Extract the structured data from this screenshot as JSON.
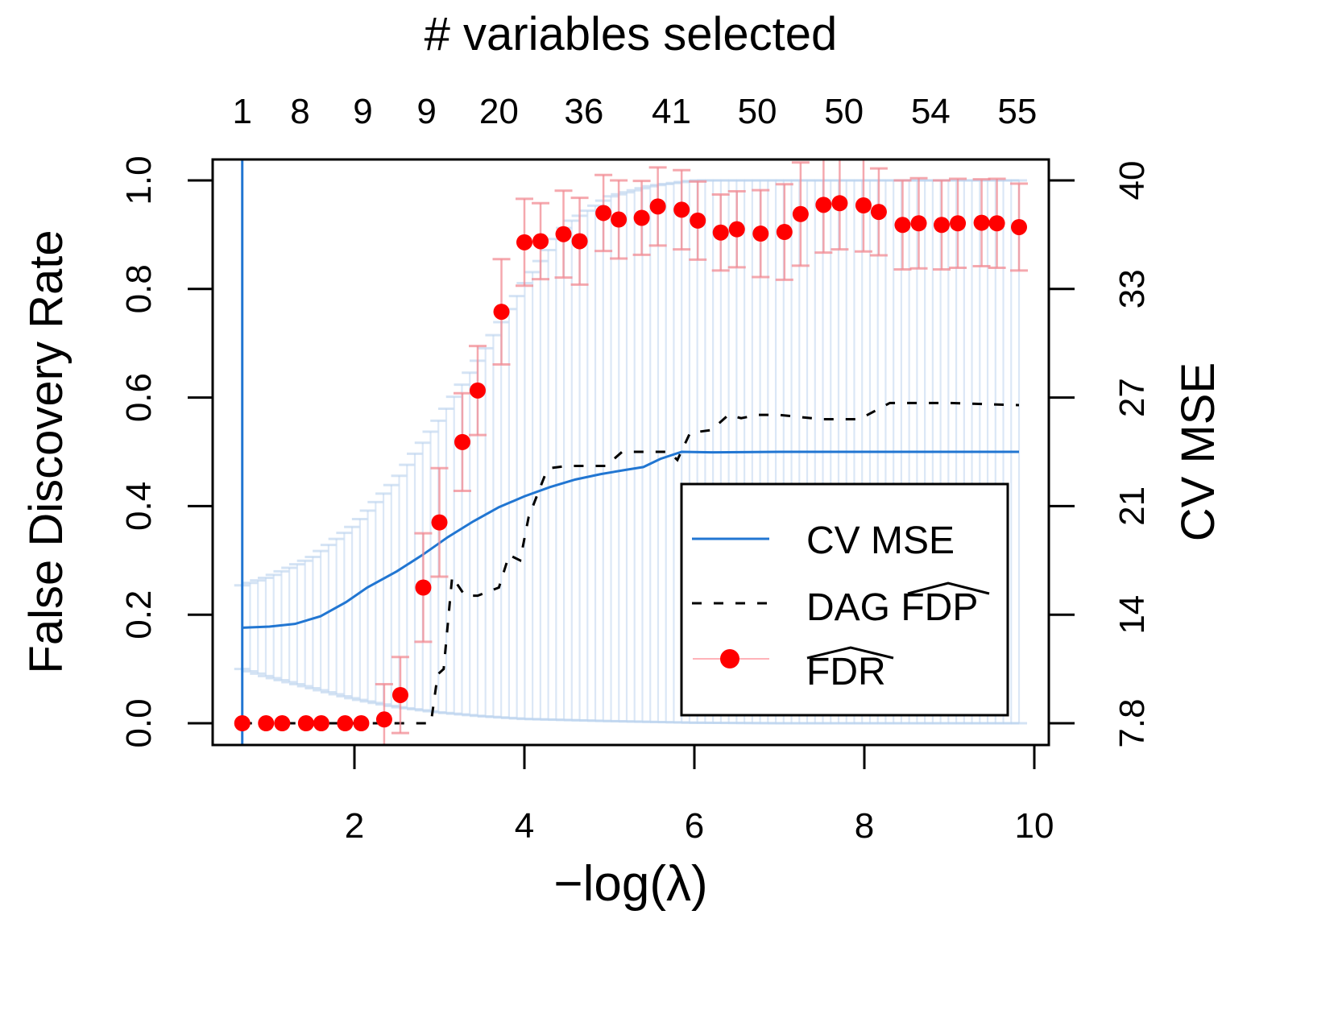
{
  "chart_data": {
    "type": "scatter",
    "title": "",
    "top_axis": {
      "label": "# variables selected",
      "tick_positions": [
        0.68,
        1.36,
        2.1,
        2.85,
        3.7,
        4.7,
        5.73,
        6.74,
        7.76,
        8.78,
        9.8
      ],
      "tick_labels": [
        "1",
        "8",
        "9",
        "9",
        "20",
        "36",
        "41",
        "50",
        "50",
        "54",
        "55"
      ]
    },
    "xlabel": "−log(λ)",
    "ylabel": "False Discovery Rate",
    "y2label": "CV MSE",
    "xlim": [
      0.5,
      10.2
    ],
    "ylim": [
      -0.04,
      1.04
    ],
    "x_ticks": [
      2,
      4,
      6,
      8,
      10
    ],
    "y_ticks": [
      0.0,
      0.2,
      0.4,
      0.6,
      0.8,
      1.0
    ],
    "y_tick_labels": [
      "0.0",
      "0.2",
      "0.4",
      "0.6",
      "0.8",
      "1.0"
    ],
    "y2_ticks": [
      0.0,
      0.2,
      0.4,
      0.6,
      0.8,
      1.0
    ],
    "y2_tick_labels": [
      "7.8",
      "14",
      "21",
      "27",
      "33",
      "40"
    ],
    "grid": false,
    "legend_position": "bottom-right",
    "legend": [
      {
        "label": "CV MSE",
        "style": "solid-line",
        "color": "#2176d2"
      },
      {
        "label": "DAG FDP",
        "hat": "FDP",
        "prefix": "DAG ",
        "style": "dashed-line",
        "color": "#000000"
      },
      {
        "label": "FDR",
        "hat": "FDR",
        "prefix": "",
        "style": "point-errorbar",
        "color": "#ff0000"
      }
    ],
    "vertical_line": {
      "x": 0.68,
      "color": "#2176d2"
    },
    "series": [
      {
        "name": "FDR (estimated)",
        "type": "scatter-errorbar",
        "color": "#ff0000",
        "x": [
          0.68,
          0.96,
          1.15,
          1.43,
          1.61,
          1.89,
          2.08,
          2.35,
          2.54,
          2.81,
          3.0,
          3.27,
          3.45,
          3.73,
          4.0,
          4.19,
          4.46,
          4.65,
          4.93,
          5.11,
          5.38,
          5.57,
          5.85,
          6.04,
          6.31,
          6.5,
          6.78,
          7.06,
          7.25,
          7.52,
          7.71,
          7.99,
          8.17,
          8.45,
          8.64,
          8.91,
          9.1,
          9.38,
          9.56,
          9.82
        ],
        "y": [
          0.0,
          0.0,
          0.0,
          0.0,
          0.0,
          0.0,
          0.0,
          0.007,
          0.052,
          0.25,
          0.37,
          0.518,
          0.613,
          0.758,
          0.886,
          0.888,
          0.901,
          0.888,
          0.94,
          0.928,
          0.931,
          0.952,
          0.946,
          0.926,
          0.904,
          0.91,
          0.902,
          0.905,
          0.938,
          0.955,
          0.958,
          0.954,
          0.942,
          0.918,
          0.921,
          0.918,
          0.921,
          0.922,
          0.921,
          0.914
        ],
        "err": [
          0,
          0,
          0,
          0,
          0,
          0,
          0,
          0.065,
          0.07,
          0.1,
          0.1,
          0.09,
          0.082,
          0.097,
          0.08,
          0.07,
          0.08,
          0.08,
          0.07,
          0.072,
          0.068,
          0.072,
          0.073,
          0.072,
          0.07,
          0.07,
          0.08,
          0.088,
          0.095,
          0.088,
          0.085,
          0.085,
          0.08,
          0.082,
          0.083,
          0.082,
          0.082,
          0.08,
          0.082,
          0.08
        ]
      },
      {
        "name": "CV MSE",
        "type": "line",
        "color": "#2176d2",
        "axis": "right-scaled",
        "x": [
          0.68,
          1.0,
          1.3,
          1.6,
          1.9,
          2.15,
          2.5,
          2.8,
          3.1,
          3.4,
          3.7,
          4.0,
          4.3,
          4.6,
          4.9,
          5.2,
          5.4,
          5.6,
          5.85,
          6.2,
          7.0,
          8.0,
          9.0,
          9.82
        ],
        "y": [
          0.176,
          0.178,
          0.183,
          0.197,
          0.223,
          0.25,
          0.28,
          0.31,
          0.343,
          0.372,
          0.398,
          0.418,
          0.435,
          0.449,
          0.459,
          0.467,
          0.472,
          0.487,
          0.5,
          0.499,
          0.5,
          0.5,
          0.5,
          0.5
        ]
      },
      {
        "name": "CV MSE upper band",
        "type": "errorband-upper",
        "color": "#c8dcf2",
        "x": [
          0.68,
          1.0,
          1.5,
          2.0,
          2.5,
          3.0,
          3.5,
          4.0,
          4.5,
          5.0,
          5.5,
          6.0,
          7.0,
          8.0,
          9.0,
          9.82
        ],
        "y": [
          0.254,
          0.27,
          0.305,
          0.365,
          0.45,
          0.56,
          0.68,
          0.81,
          0.92,
          0.97,
          0.99,
          1.0,
          1.0,
          1.0,
          1.0,
          1.0
        ]
      },
      {
        "name": "CV MSE lower band",
        "type": "errorband-lower",
        "color": "#c8dcf2",
        "x": [
          0.68,
          1.0,
          1.5,
          2.0,
          2.5,
          3.0,
          3.5,
          4.0,
          5.0,
          6.0,
          7.0,
          8.0,
          9.0,
          9.82
        ],
        "y": [
          0.1,
          0.085,
          0.065,
          0.045,
          0.03,
          0.02,
          0.013,
          0.008,
          0.004,
          0.001,
          0.0,
          0.0,
          0.0,
          0.0
        ]
      },
      {
        "name": "DAG FDP",
        "type": "dashed-line",
        "color": "#000000",
        "x": [
          0.68,
          2.9,
          2.98,
          3.05,
          3.15,
          3.3,
          3.45,
          3.7,
          3.82,
          3.95,
          4.05,
          4.25,
          4.3,
          4.5,
          4.96,
          5.15,
          5.25,
          5.7,
          5.8,
          5.95,
          6.2,
          6.4,
          6.55,
          6.75,
          7.0,
          7.5,
          7.9,
          8.0,
          8.3,
          8.5,
          9.0,
          9.82
        ],
        "y": [
          0.0,
          0.0,
          0.09,
          0.1,
          0.27,
          0.235,
          0.235,
          0.25,
          0.31,
          0.3,
          0.38,
          0.46,
          0.47,
          0.474,
          0.474,
          0.5,
          0.5,
          0.5,
          0.485,
          0.535,
          0.54,
          0.568,
          0.562,
          0.568,
          0.568,
          0.56,
          0.56,
          0.565,
          0.59,
          0.59,
          0.59,
          0.586
        ]
      }
    ]
  },
  "labels": {
    "top_axis_title": "# variables selected",
    "x_axis_title": "−log(λ)",
    "y_axis_title": "False Discovery Rate",
    "y2_axis_title": "CV MSE"
  }
}
